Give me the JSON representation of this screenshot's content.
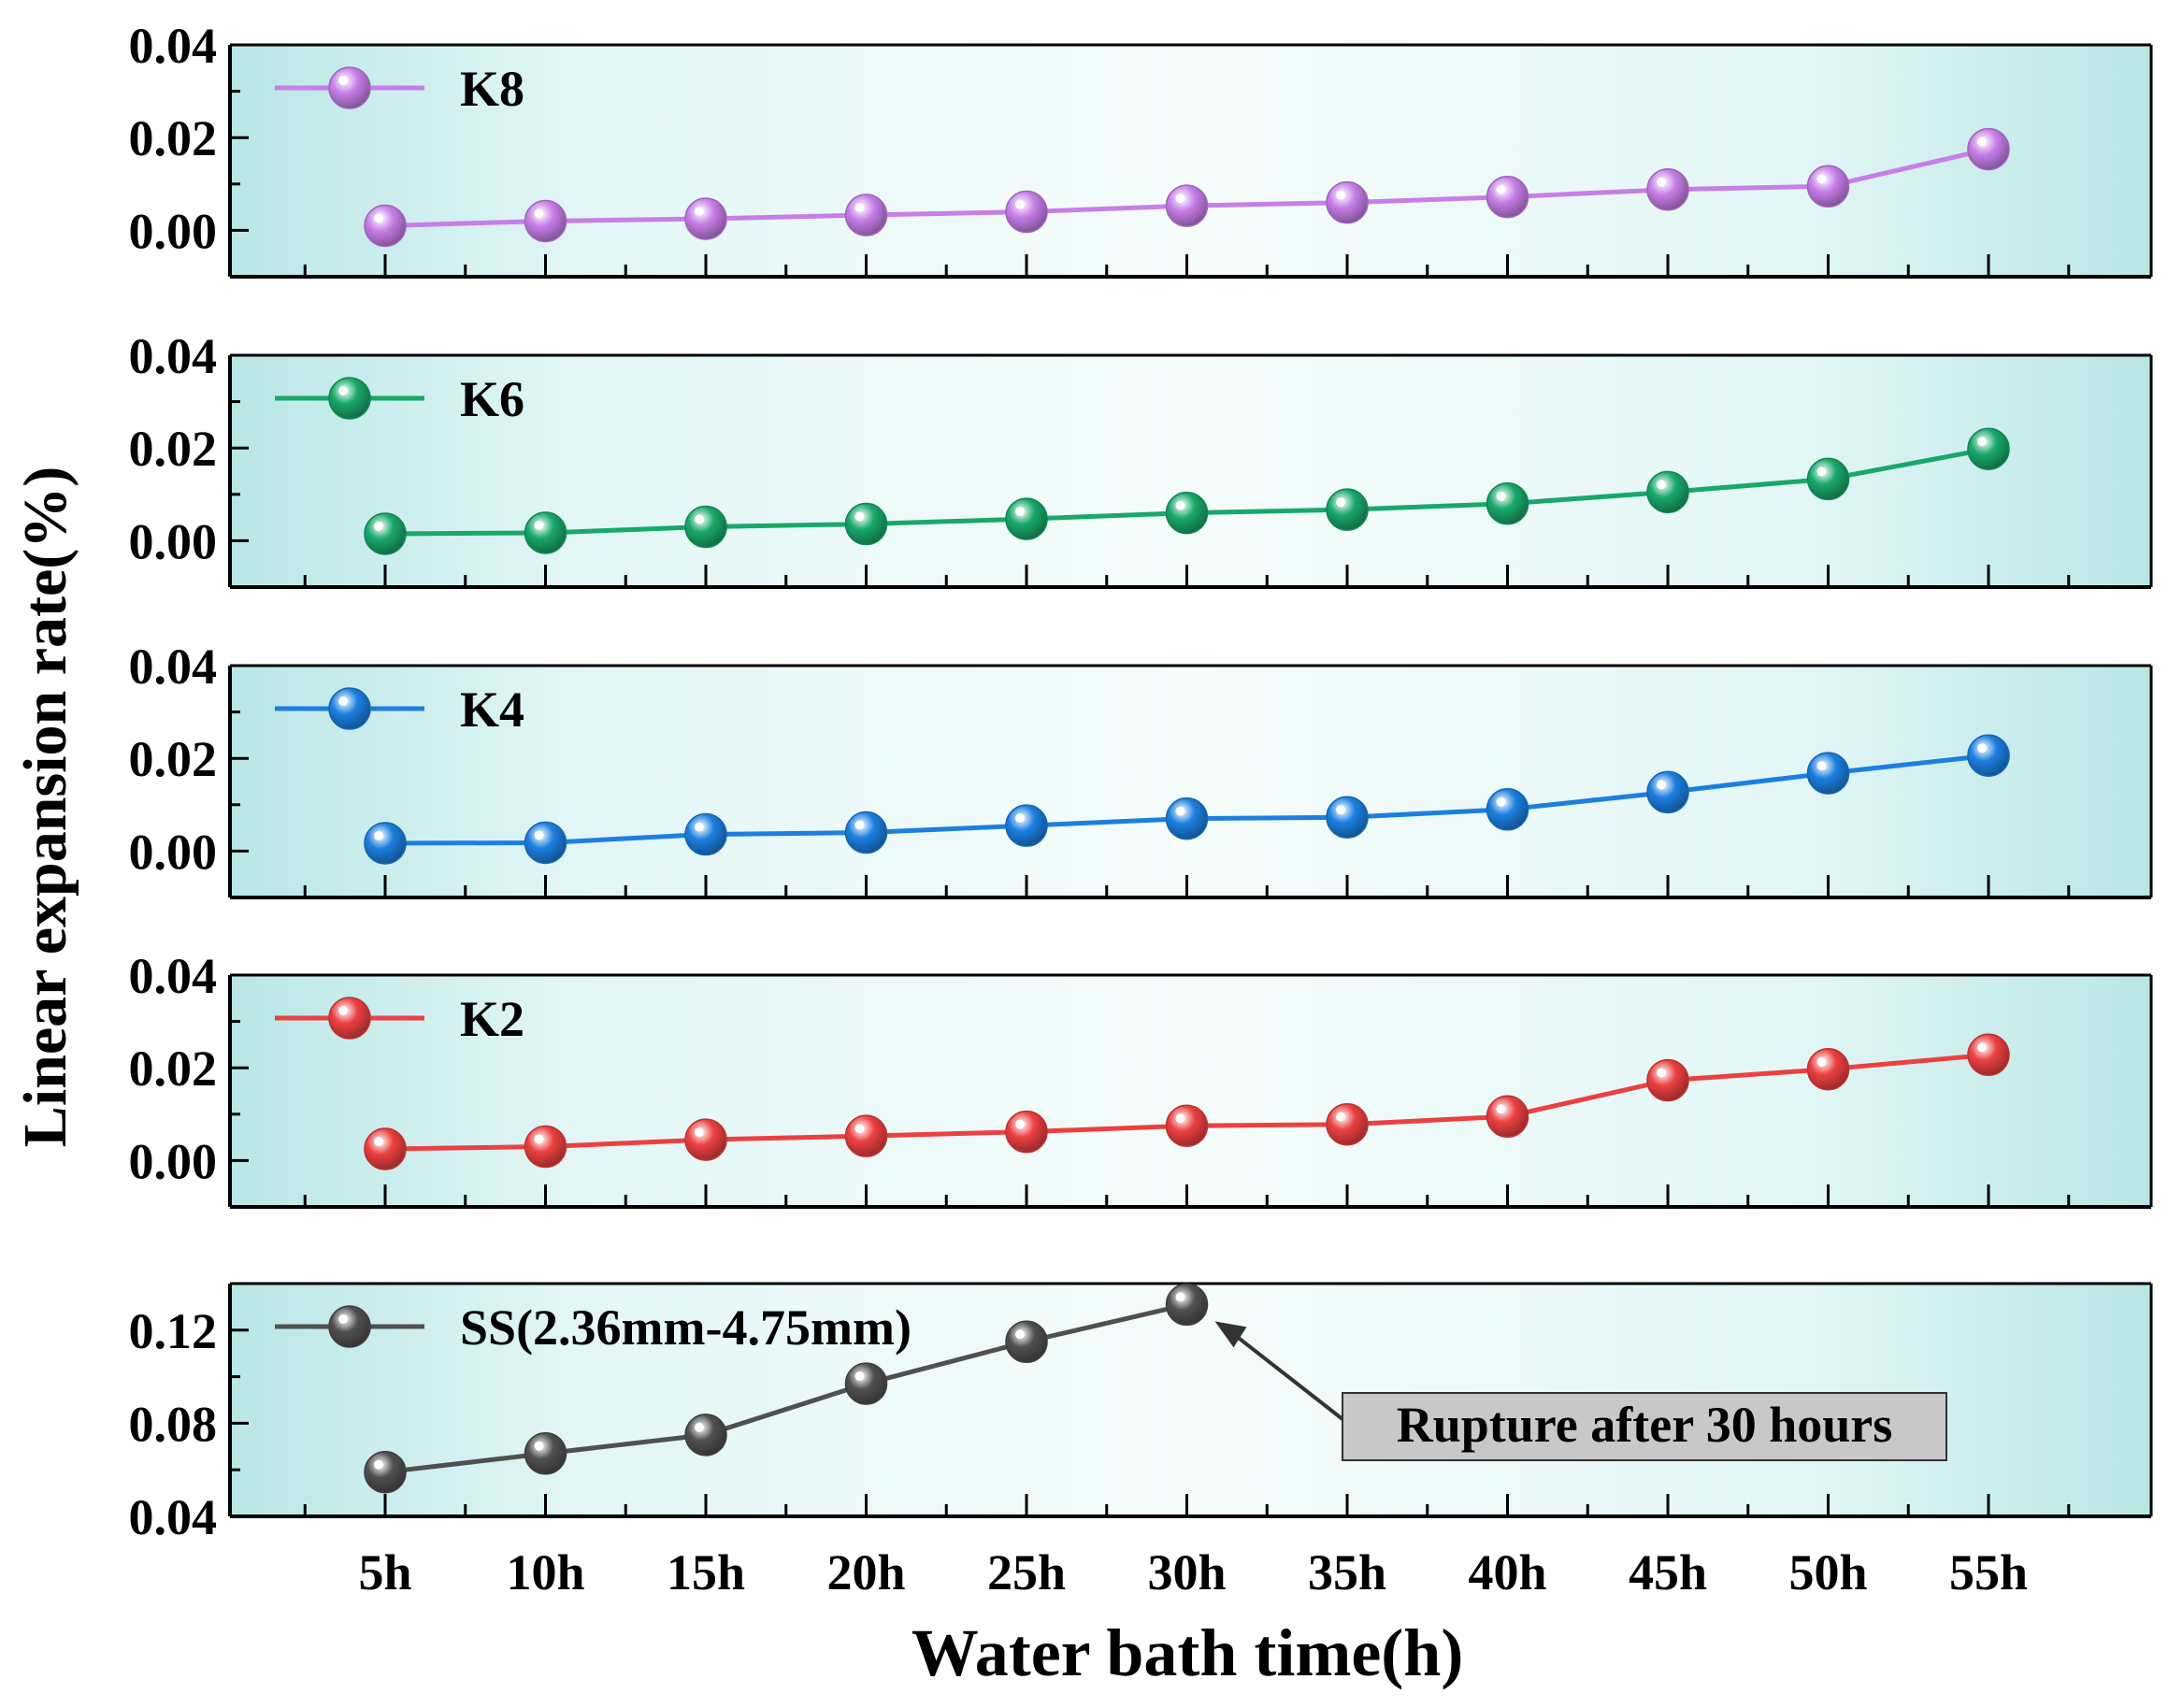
{
  "xlabel": "Water bath time(h)",
  "ylabel": "Linear expansion rate(%)",
  "categories": [
    "5h",
    "10h",
    "15h",
    "20h",
    "25h",
    "30h",
    "35h",
    "40h",
    "45h",
    "50h",
    "55h"
  ],
  "chart_data": [
    {
      "type": "line",
      "categories": [
        "5h",
        "10h",
        "15h",
        "20h",
        "25h",
        "30h",
        "35h",
        "40h",
        "45h",
        "50h",
        "55h"
      ],
      "series": [
        {
          "name": "K8",
          "color": "#c77ee8",
          "values": [
            0.001,
            0.002,
            0.0025,
            0.0033,
            0.004,
            0.0053,
            0.006,
            0.0072,
            0.0088,
            0.0095,
            0.0175
          ]
        }
      ],
      "ylim": [
        -0.01,
        0.04
      ],
      "yticks": [
        "0.00",
        "0.02",
        "0.04"
      ],
      "ytick_values": [
        0,
        0.02,
        0.04
      ],
      "legend_position": "top-left",
      "grid": false
    },
    {
      "type": "line",
      "categories": [
        "5h",
        "10h",
        "15h",
        "20h",
        "25h",
        "30h",
        "35h",
        "40h",
        "45h",
        "50h",
        "55h"
      ],
      "series": [
        {
          "name": "K6",
          "color": "#18a86a",
          "values": [
            0.0015,
            0.0017,
            0.003,
            0.0036,
            0.0047,
            0.006,
            0.0067,
            0.008,
            0.0105,
            0.0133,
            0.0198
          ]
        }
      ],
      "ylim": [
        -0.01,
        0.04
      ],
      "yticks": [
        "0.00",
        "0.02",
        "0.04"
      ],
      "ytick_values": [
        0,
        0.02,
        0.04
      ],
      "legend_position": "top-left",
      "grid": false
    },
    {
      "type": "line",
      "categories": [
        "5h",
        "10h",
        "15h",
        "20h",
        "25h",
        "30h",
        "35h",
        "40h",
        "45h",
        "50h",
        "55h"
      ],
      "series": [
        {
          "name": "K4",
          "color": "#1c7fe0",
          "values": [
            0.0017,
            0.0018,
            0.0036,
            0.004,
            0.0055,
            0.007,
            0.0073,
            0.009,
            0.0127,
            0.0168,
            0.0206
          ]
        }
      ],
      "ylim": [
        -0.01,
        0.04
      ],
      "yticks": [
        "0.00",
        "0.02",
        "0.04"
      ],
      "ytick_values": [
        0,
        0.02,
        0.04
      ],
      "legend_position": "top-left",
      "grid": false
    },
    {
      "type": "line",
      "categories": [
        "5h",
        "10h",
        "15h",
        "20h",
        "25h",
        "30h",
        "35h",
        "40h",
        "45h",
        "50h",
        "55h"
      ],
      "series": [
        {
          "name": "K2",
          "color": "#ec4040",
          "values": [
            0.0025,
            0.003,
            0.0045,
            0.0053,
            0.0062,
            0.0075,
            0.0078,
            0.0095,
            0.0173,
            0.0197,
            0.0228
          ]
        }
      ],
      "ylim": [
        -0.01,
        0.04
      ],
      "yticks": [
        "0.00",
        "0.02",
        "0.04"
      ],
      "ytick_values": [
        0,
        0.02,
        0.04
      ],
      "legend_position": "top-left",
      "grid": false
    },
    {
      "type": "line",
      "categories": [
        "5h",
        "10h",
        "15h",
        "20h",
        "25h",
        "30h",
        "35h",
        "40h",
        "45h",
        "50h",
        "55h"
      ],
      "series": [
        {
          "name": "SS(2.36mm-4.75mm)",
          "color": "#505050",
          "values": [
            0.059,
            0.067,
            0.075,
            0.097,
            0.115,
            0.131,
            null,
            null,
            null,
            null,
            null
          ]
        }
      ],
      "ylim": [
        0.04,
        0.14
      ],
      "yticks": [
        "0.04",
        "0.08",
        "0.12"
      ],
      "ytick_values": [
        0.04,
        0.08,
        0.12
      ],
      "legend_position": "top-left",
      "grid": false,
      "annotation": {
        "text": "Rupture after 30 hours",
        "category": "30h"
      }
    }
  ]
}
